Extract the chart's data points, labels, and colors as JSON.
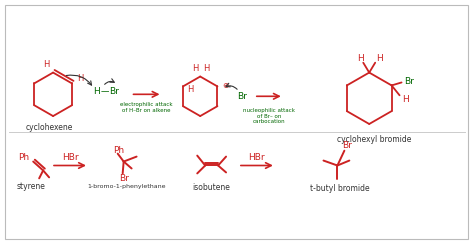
{
  "bg_color": "#ffffff",
  "red": "#cc2222",
  "green": "#006600",
  "black": "#333333",
  "gray_border": "#bbbbbb",
  "gray_div": "#cccccc",
  "label_cyclohexene": "cyclohexene",
  "label_cyclohexyl": "cyclohexyl bromide",
  "label_styrene": "styrene",
  "label_1bromo": "1-bromo-1-phenylethane",
  "label_isobutene": "isobutene",
  "label_tbutyl": "t-butyl bromide",
  "arrow1_label": "electrophilic attack\nof H–Br on alkene",
  "arrow2_label": "nucleophilic attack\nof Br– on\ncarbocation",
  "hbr": "HBr",
  "plus": "⊕"
}
